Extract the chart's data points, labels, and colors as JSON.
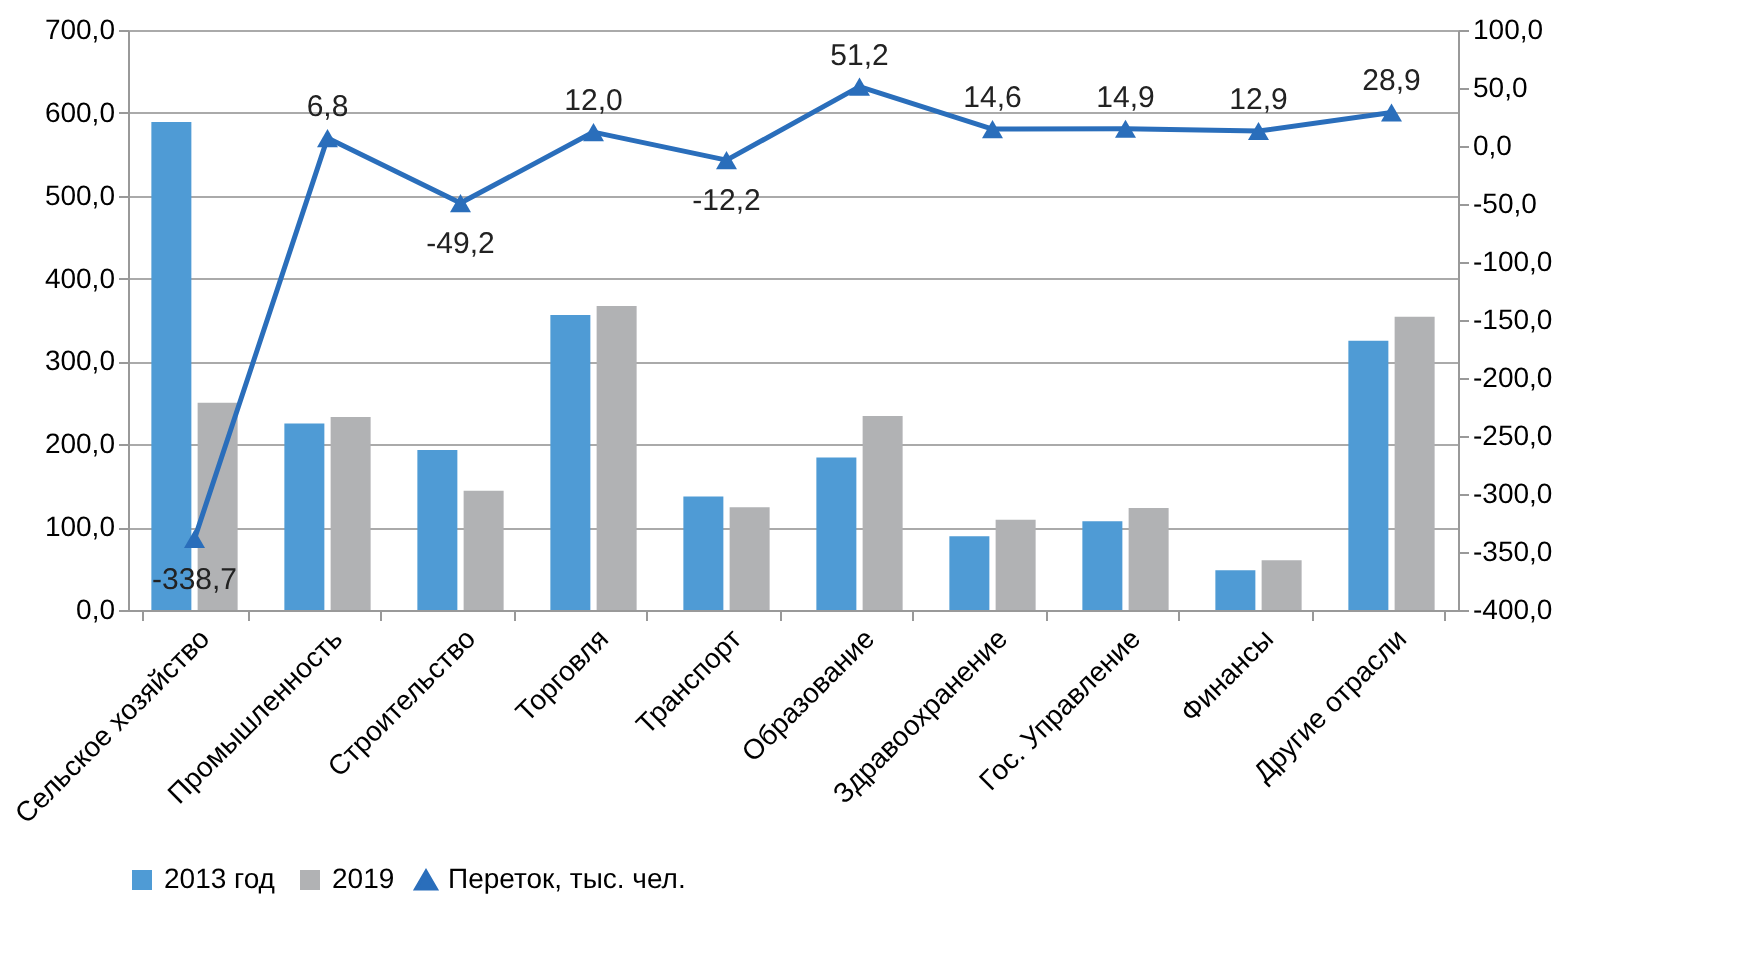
{
  "chart_data": {
    "type": "bar",
    "categories": [
      "Сельское хозяйство",
      "Промышленность",
      "Строительство",
      "Торговля",
      "Транспорт",
      "Образование",
      "Здравоохранение",
      "Гос. Управление",
      "Финансы",
      "Другие отрасли"
    ],
    "series": [
      {
        "name": "2013 год",
        "color": "#4f9bd5",
        "values": [
          589,
          225,
          193,
          356,
          137,
          184,
          89,
          107,
          48,
          325
        ]
      },
      {
        "name": "2019",
        "color": "#b1b2b4",
        "values": [
          250,
          233,
          144,
          367,
          124,
          234,
          109,
          123,
          60,
          354
        ]
      },
      {
        "name": "Переток, тыс. чел.",
        "type": "line",
        "axis": "y2",
        "color": "#2a6ebb",
        "marker": "triangle",
        "values": [
          -338.7,
          6.8,
          -49.2,
          12.0,
          -12.2,
          51.2,
          14.6,
          14.9,
          12.9,
          28.9
        ],
        "value_labels": [
          "-338,7",
          "6,8",
          "-49,2",
          "12,0",
          "-12,2",
          "51,2",
          "14,6",
          "14,9",
          "12,9",
          "28,9"
        ]
      }
    ],
    "ylim": [
      0,
      700
    ],
    "yticks": [
      {
        "value": 0,
        "label": "0,0"
      },
      {
        "value": 100,
        "label": "100,0"
      },
      {
        "value": 200,
        "label": "200,0"
      },
      {
        "value": 300,
        "label": "300,0"
      },
      {
        "value": 400,
        "label": "400,0"
      },
      {
        "value": 500,
        "label": "500,0"
      },
      {
        "value": 600,
        "label": "600,0"
      },
      {
        "value": 700,
        "label": "700,0"
      }
    ],
    "y2lim": [
      -400,
      100
    ],
    "y2ticks": [
      {
        "value": -400,
        "label": "-400,0"
      },
      {
        "value": -350,
        "label": "-350,0"
      },
      {
        "value": -300,
        "label": "-300,0"
      },
      {
        "value": -250,
        "label": "-250,0"
      },
      {
        "value": -200,
        "label": "-200,0"
      },
      {
        "value": -150,
        "label": "-150,0"
      },
      {
        "value": -100,
        "label": "-100,0"
      },
      {
        "value": -50,
        "label": "-50,0"
      },
      {
        "value": 0,
        "label": "0,0"
      },
      {
        "value": 50,
        "label": "50,0"
      },
      {
        "value": 100,
        "label": "100,0"
      }
    ],
    "grid": "y",
    "legend": "bottom"
  }
}
